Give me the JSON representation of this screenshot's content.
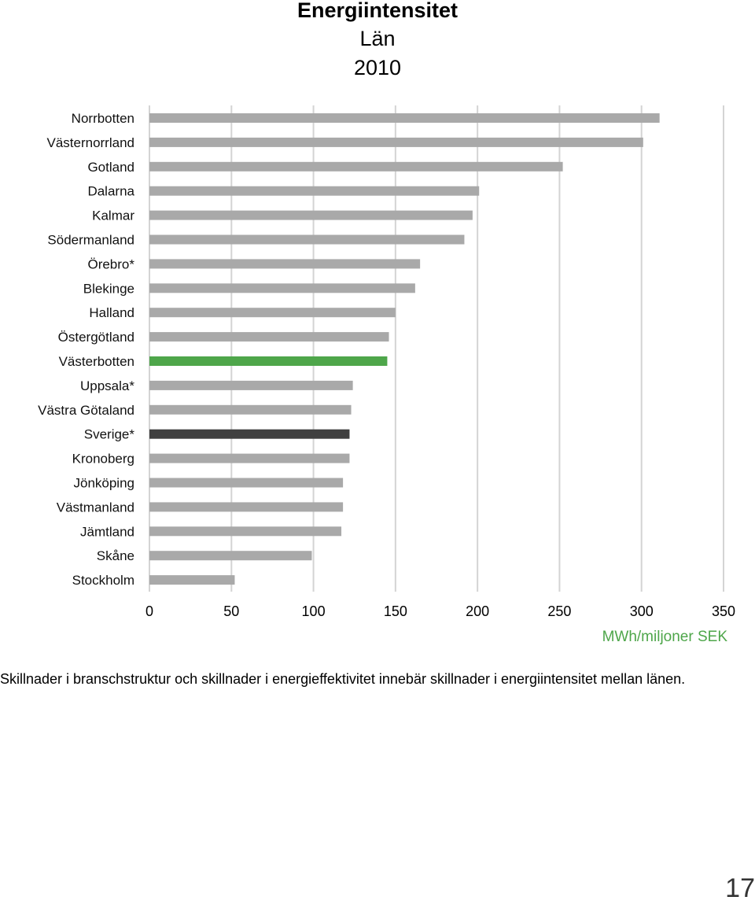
{
  "chart_data": {
    "type": "bar",
    "orientation": "horizontal",
    "title": "Energiintensitet",
    "subtitle": "Län",
    "year": "2010",
    "xlabel": "MWh/miljoner SEK",
    "xlim": [
      0,
      350
    ],
    "xticks": [
      0,
      50,
      100,
      150,
      200,
      250,
      300,
      350
    ],
    "grid": true,
    "categories": [
      "Norrbotten",
      "Västernorrland",
      "Gotland",
      "Dalarna",
      "Kalmar",
      "Södermanland",
      "Örebro*",
      "Blekinge",
      "Halland",
      "Östergötland",
      "Västerbotten",
      "Uppsala*",
      "Västra Götaland",
      "Sverige*",
      "Kronoberg",
      "Jönköping",
      "Västmanland",
      "Jämtland",
      "Skåne",
      "Stockholm"
    ],
    "values": [
      311,
      301,
      252,
      201,
      197,
      192,
      165,
      162,
      150,
      146,
      145,
      124,
      123,
      122,
      122,
      118,
      118,
      117,
      99,
      52
    ],
    "highlight": {
      "Västerbotten": "#4ea64a",
      "Sverige*": "#404040"
    }
  },
  "colors": {
    "bar": "#a9a9a9",
    "grid": "#d4d4d4",
    "axis_label": "#4ea64a"
  },
  "caption": "Skillnader i branschstruktur och skillnader i energieffektivitet innebär skillnader i energiintensitet mellan länen.",
  "page_number": "17"
}
